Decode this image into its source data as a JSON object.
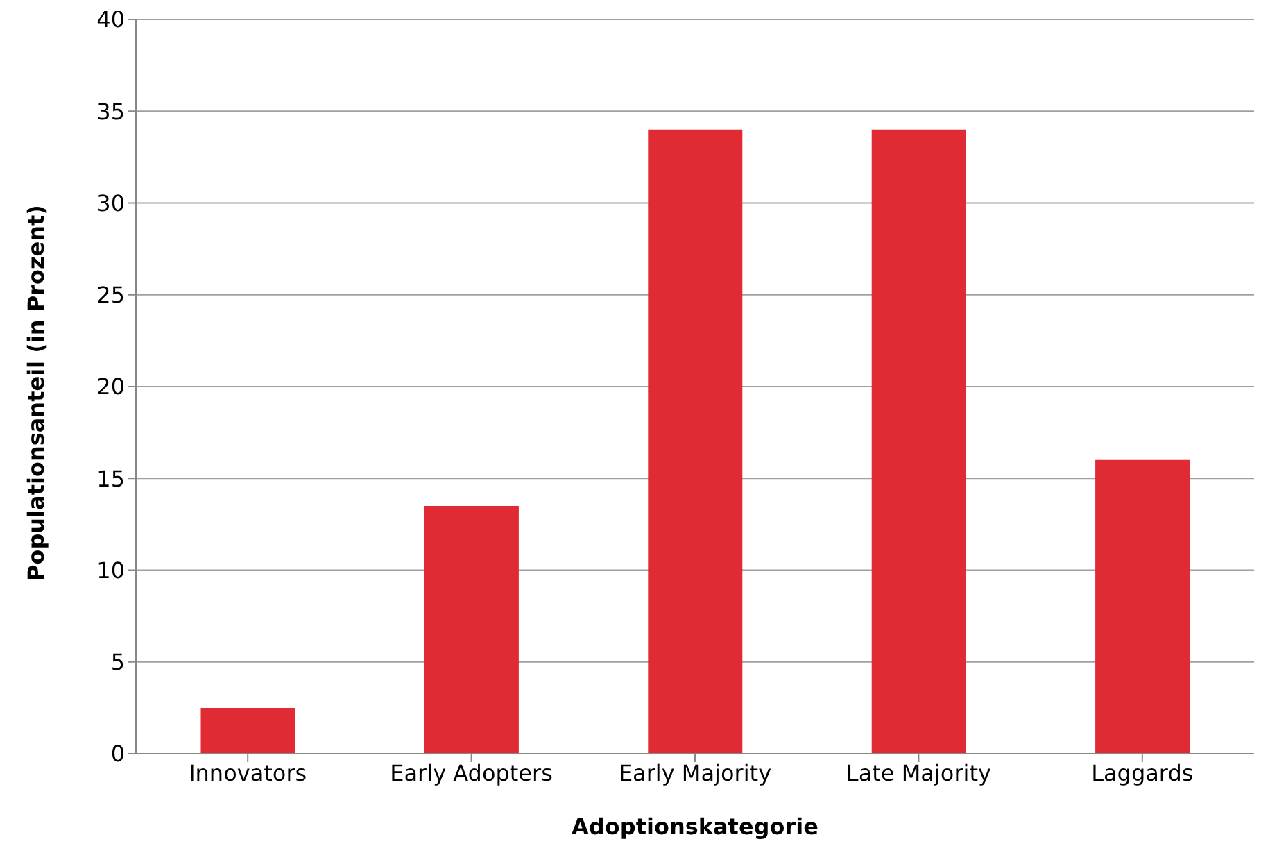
{
  "chart_data": {
    "type": "bar",
    "xlabel": "Adoptionskategorie",
    "ylabel": "Populationsanteil (in Prozent)",
    "categories": [
      "Innovators",
      "Early Adopters",
      "Early Majority",
      "Late Majority",
      "Laggards"
    ],
    "values": [
      2.5,
      13.5,
      34,
      34,
      16
    ],
    "color": "#e02b35",
    "ylim": [
      0,
      40
    ],
    "yticks": [
      0,
      5,
      10,
      15,
      20,
      25,
      30,
      35,
      40
    ],
    "grid": "y"
  }
}
